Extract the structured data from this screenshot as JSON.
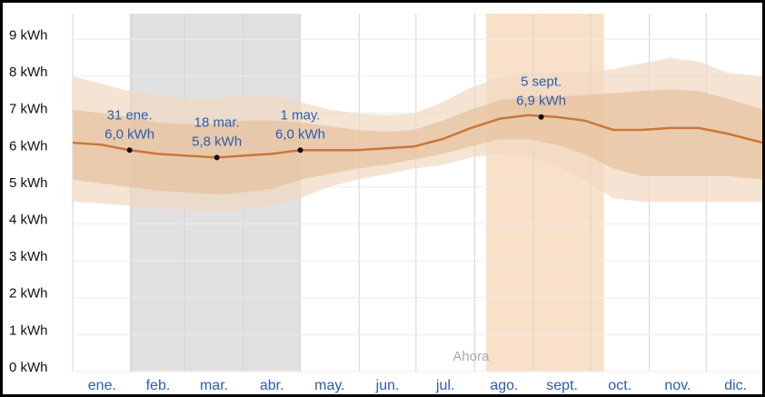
{
  "chart_data": {
    "type": "line",
    "xlim": [
      0,
      365
    ],
    "xticks": [
      0,
      31,
      59,
      90,
      120,
      151,
      181,
      212,
      243,
      273,
      304,
      334,
      365
    ],
    "categories": [
      "ene.",
      "feb.",
      "mar.",
      "abr.",
      "may.",
      "jun.",
      "jul.",
      "ago.",
      "sept.",
      "oct.",
      "nov.",
      "dic."
    ],
    "ylim": [
      0,
      9.7
    ],
    "yticks": [
      {
        "value": 0,
        "label": "0 kWh"
      },
      {
        "value": 1,
        "label": "1 kWh"
      },
      {
        "value": 2,
        "label": "2 kWh"
      },
      {
        "value": 3,
        "label": "3 kWh"
      },
      {
        "value": 4,
        "label": "4 kWh"
      },
      {
        "value": 5,
        "label": "5 kWh"
      },
      {
        "value": 6,
        "label": "6 kWh"
      },
      {
        "value": 7,
        "label": "7 kWh"
      },
      {
        "value": 8,
        "label": "8 kWh"
      },
      {
        "value": 9,
        "label": "9 kWh"
      }
    ],
    "grid": true,
    "highlights": [
      {
        "from": 30,
        "to": 120,
        "color": "#e1e1e1"
      },
      {
        "from": 218,
        "to": 280,
        "color": "#f8e0c9"
      }
    ],
    "x": [
      0,
      15,
      30,
      45,
      60,
      76,
      90,
      105,
      120,
      135,
      150,
      165,
      180,
      195,
      210,
      225,
      240,
      255,
      270,
      285,
      300,
      315,
      330,
      345,
      364
    ],
    "bands": [
      {
        "color": "#f1d9c2",
        "lower": [
          4.6,
          4.55,
          4.5,
          4.4,
          4.4,
          4.35,
          4.4,
          4.5,
          4.7,
          5.0,
          5.2,
          5.35,
          5.5,
          5.6,
          5.8,
          5.9,
          5.8,
          5.6,
          5.2,
          4.7,
          4.6,
          4.6,
          4.6,
          4.6,
          4.6
        ],
        "upper": [
          8.0,
          7.8,
          7.6,
          7.5,
          7.4,
          7.4,
          7.5,
          7.5,
          7.3,
          7.1,
          7.0,
          6.95,
          7.0,
          7.3,
          7.7,
          7.95,
          8.1,
          8.1,
          8.1,
          8.2,
          8.35,
          8.5,
          8.4,
          8.1,
          8.0
        ]
      },
      {
        "color": "#e7c09c",
        "lower": [
          5.2,
          5.1,
          5.0,
          4.9,
          4.85,
          4.8,
          4.85,
          4.95,
          5.2,
          5.35,
          5.5,
          5.6,
          5.75,
          5.9,
          6.1,
          6.3,
          6.3,
          6.15,
          5.9,
          5.5,
          5.3,
          5.3,
          5.3,
          5.3,
          5.2
        ],
        "upper": [
          7.1,
          7.0,
          6.9,
          6.75,
          6.7,
          6.7,
          6.8,
          6.8,
          6.75,
          6.65,
          6.55,
          6.5,
          6.55,
          6.8,
          7.1,
          7.35,
          7.45,
          7.45,
          7.5,
          7.55,
          7.6,
          7.65,
          7.6,
          7.4,
          7.1
        ]
      }
    ],
    "series": [
      {
        "color": "#c8783a",
        "values": [
          6.2,
          6.15,
          6.0,
          5.9,
          5.85,
          5.8,
          5.85,
          5.9,
          6.0,
          6.0,
          6.0,
          6.05,
          6.1,
          6.3,
          6.6,
          6.85,
          6.95,
          6.9,
          6.8,
          6.55,
          6.55,
          6.6,
          6.6,
          6.45,
          6.2
        ]
      }
    ],
    "annotations": [
      {
        "x": 30,
        "value": 6.0,
        "date": "31 ene.",
        "label": "6,0 kWh"
      },
      {
        "x": 76,
        "value": 5.8,
        "date": "18 mar.",
        "label": "5,8 kWh"
      },
      {
        "x": 120,
        "value": 6.0,
        "date": "1 may.",
        "label": "6,0 kWh"
      },
      {
        "x": 247,
        "value": 6.9,
        "date": "5 sept.",
        "label": "6,9 kWh"
      }
    ],
    "now": {
      "x": 210,
      "label": "Ahora"
    }
  }
}
